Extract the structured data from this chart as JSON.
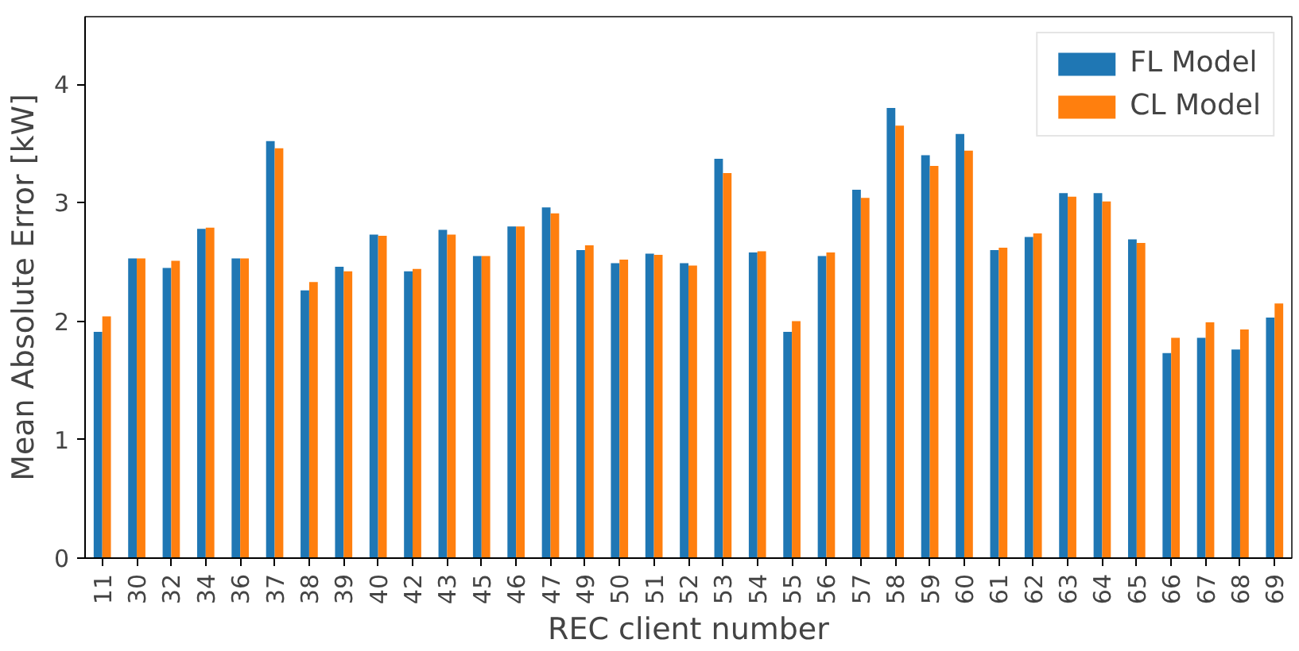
{
  "chart_data": {
    "type": "bar",
    "xlabel": "REC client number",
    "ylabel": "Mean Absolute Error [kW]",
    "categories": [
      "11",
      "30",
      "32",
      "34",
      "36",
      "37",
      "38",
      "39",
      "40",
      "42",
      "43",
      "45",
      "46",
      "47",
      "49",
      "50",
      "51",
      "52",
      "53",
      "54",
      "55",
      "56",
      "57",
      "58",
      "59",
      "60",
      "61",
      "62",
      "63",
      "64",
      "65",
      "66",
      "67",
      "68",
      "69"
    ],
    "series": [
      {
        "name": "FL Model",
        "color": "#1f77b4",
        "values": [
          1.91,
          2.53,
          2.45,
          2.78,
          2.53,
          3.52,
          2.26,
          2.46,
          2.73,
          2.42,
          2.77,
          2.55,
          2.8,
          2.96,
          2.6,
          2.49,
          2.57,
          2.49,
          3.37,
          2.58,
          1.91,
          2.55,
          3.11,
          3.8,
          3.4,
          3.58,
          2.6,
          2.71,
          3.08,
          3.08,
          2.69,
          1.73,
          1.86,
          1.76,
          2.03
        ]
      },
      {
        "name": "CL Model",
        "color": "#ff7f0e",
        "values": [
          2.04,
          2.53,
          2.51,
          2.79,
          2.53,
          3.46,
          2.33,
          2.42,
          2.72,
          2.44,
          2.73,
          2.55,
          2.8,
          2.91,
          2.64,
          2.52,
          2.56,
          2.47,
          3.25,
          2.59,
          2.0,
          2.58,
          3.04,
          3.65,
          3.31,
          3.44,
          2.62,
          2.74,
          3.05,
          3.01,
          2.66,
          1.86,
          1.99,
          1.93,
          2.15
        ]
      }
    ],
    "ylim": [
      0,
      4.57
    ],
    "yticks": [
      0,
      1,
      2,
      3,
      4
    ],
    "grid": false,
    "legend": "top right"
  }
}
